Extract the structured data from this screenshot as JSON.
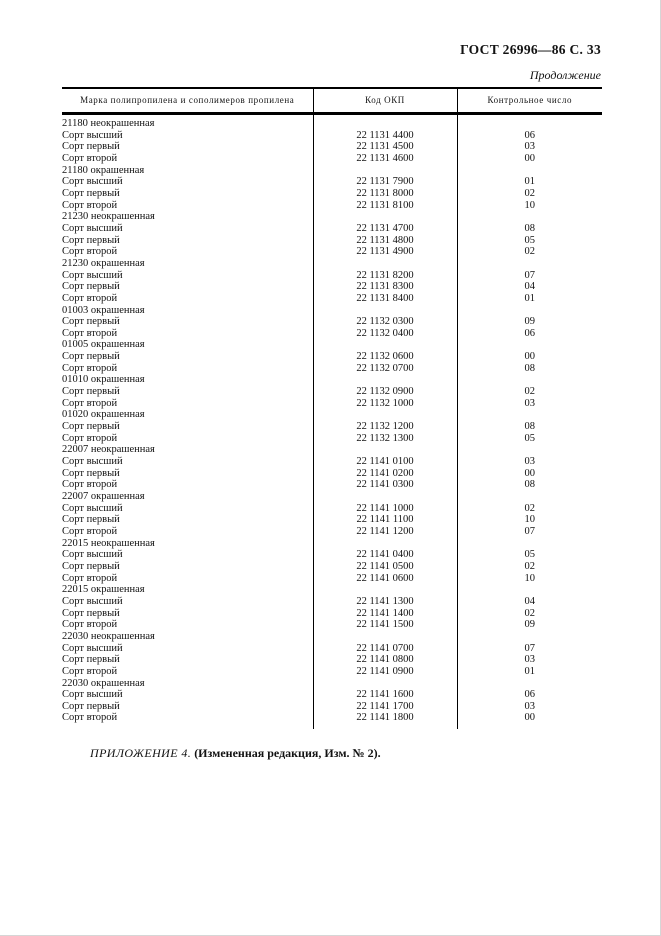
{
  "page_header": {
    "title": "ГОСТ 26996—86 С. 33"
  },
  "continuation_label": "Продолжение",
  "table": {
    "columns": [
      "Марка полипропилена и сополимеров пропилена",
      "Код ОКП",
      "Контрольное число"
    ],
    "rows": [
      [
        "21180 неокрашенная",
        "",
        ""
      ],
      [
        "Сорт высший",
        "22 1131 4400",
        "06"
      ],
      [
        "Сорт первый",
        "22 1131 4500",
        "03"
      ],
      [
        "Сорт второй",
        "22 1131 4600",
        "00"
      ],
      [
        "21180 окрашенная",
        "",
        ""
      ],
      [
        "Сорт высший",
        "22 1131 7900",
        "01"
      ],
      [
        "Сорт первый",
        "22 1131 8000",
        "02"
      ],
      [
        "Сорт второй",
        "22 1131 8100",
        "10"
      ],
      [
        "21230 неокрашенная",
        "",
        ""
      ],
      [
        "Сорт высший",
        "22 1131 4700",
        "08"
      ],
      [
        "Сорт первый",
        "22 1131 4800",
        "05"
      ],
      [
        "Сорт второй",
        "22 1131 4900",
        "02"
      ],
      [
        "21230 окрашенная",
        "",
        ""
      ],
      [
        "Сорт высший",
        "22 1131 8200",
        "07"
      ],
      [
        "Сорт первый",
        "22 1131 8300",
        "04"
      ],
      [
        "Сорт второй",
        "22 1131 8400",
        "01"
      ],
      [
        "01003 окрашенная",
        "",
        ""
      ],
      [
        "Сорт первый",
        "22 1132 0300",
        "09"
      ],
      [
        "Сорт второй",
        "22 1132 0400",
        "06"
      ],
      [
        "01005 окрашенная",
        "",
        ""
      ],
      [
        "Сорт первый",
        "22 1132 0600",
        "00"
      ],
      [
        "Сорт второй",
        "22 1132 0700",
        "08"
      ],
      [
        "01010 окрашенная",
        "",
        ""
      ],
      [
        "Сорт первый",
        "22 1132 0900",
        "02"
      ],
      [
        "Сорт второй",
        "22 1132 1000",
        "03"
      ],
      [
        "01020 окрашенная",
        "",
        ""
      ],
      [
        "Сорт первый",
        "22 1132 1200",
        "08"
      ],
      [
        "Сорт второй",
        "22 1132 1300",
        "05"
      ],
      [
        "22007 неокрашенная",
        "",
        ""
      ],
      [
        "Сорт высший",
        "22 1141 0100",
        "03"
      ],
      [
        "Сорт первый",
        "22 1141 0200",
        "00"
      ],
      [
        "Сорт второй",
        "22 1141 0300",
        "08"
      ],
      [
        "22007 окрашенная",
        "",
        ""
      ],
      [
        "Сорт высший",
        "22 1141 1000",
        "02"
      ],
      [
        "Сорт первый",
        "22 1141 1100",
        "10"
      ],
      [
        "Сорт второй",
        "22 1141 1200",
        "07"
      ],
      [
        "22015 неокрашенная",
        "",
        ""
      ],
      [
        "Сорт высший",
        "22 1141 0400",
        "05"
      ],
      [
        "Сорт первый",
        "22 1141 0500",
        "02"
      ],
      [
        "Сорт второй",
        "22 1141 0600",
        "10"
      ],
      [
        "22015 окрашенная",
        "",
        ""
      ],
      [
        "Сорт высший",
        "22 1141 1300",
        "04"
      ],
      [
        "Сорт первый",
        "22 1141 1400",
        "02"
      ],
      [
        "Сорт второй",
        "22 1141 1500",
        "09"
      ],
      [
        "22030 неокрашенная",
        "",
        ""
      ],
      [
        "Сорт высший",
        "22 1141 0700",
        "07"
      ],
      [
        "Сорт первый",
        "22 1141 0800",
        "03"
      ],
      [
        "Сорт второй",
        "22 1141 0900",
        "01"
      ],
      [
        "22030 окрашенная",
        "",
        ""
      ],
      [
        "Сорт высший",
        "22 1141 1600",
        "06"
      ],
      [
        "Сорт первый",
        "22 1141 1700",
        "03"
      ],
      [
        "Сорт второй",
        "22 1141 1800",
        "00"
      ]
    ]
  },
  "footer": {
    "appendix": "ПРИЛОЖЕНИЕ 4.",
    "note": "(Измененная редакция, Изм. № 2)."
  }
}
